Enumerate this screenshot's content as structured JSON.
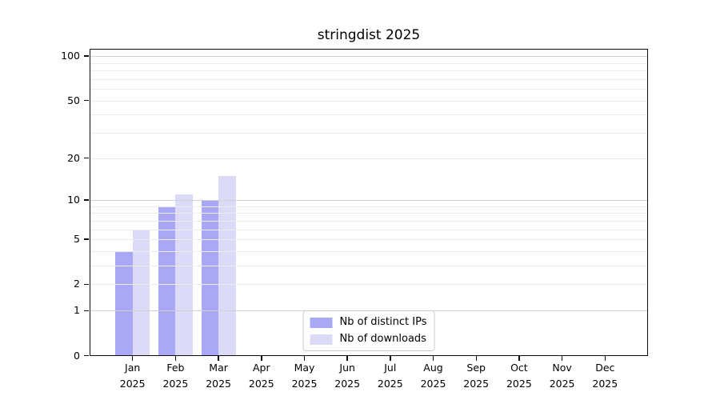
{
  "chart_data": {
    "type": "bar",
    "title": "stringdist 2025",
    "categories": [
      "Jan",
      "Feb",
      "Mar",
      "Apr",
      "May",
      "Jun",
      "Jul",
      "Aug",
      "Sep",
      "Oct",
      "Nov",
      "Dec"
    ],
    "x_tick_year": "2025",
    "series": [
      {
        "name": "Nb of distinct IPs",
        "color": "#a8a8f6",
        "values": [
          4,
          9,
          10,
          0,
          0,
          0,
          0,
          0,
          0,
          0,
          0,
          0
        ]
      },
      {
        "name": "Nb of downloads",
        "color": "#dbdbf8",
        "values": [
          6,
          11,
          15,
          0,
          0,
          0,
          0,
          0,
          0,
          0,
          0,
          0
        ]
      }
    ],
    "y_ticks": [
      0,
      1,
      2,
      5,
      10,
      20,
      50,
      100
    ],
    "y_scale": "log10(1+y)",
    "ylim": [
      0,
      110
    ],
    "grid_major": [
      1,
      10,
      100
    ],
    "grid_minor": [
      2,
      3,
      4,
      5,
      6,
      7,
      8,
      9,
      20,
      30,
      40,
      50,
      60,
      70,
      80,
      90
    ],
    "grid_color_major": "#d0d0d0",
    "grid_color_minor": "#ececec",
    "legend_position": "lower center"
  }
}
